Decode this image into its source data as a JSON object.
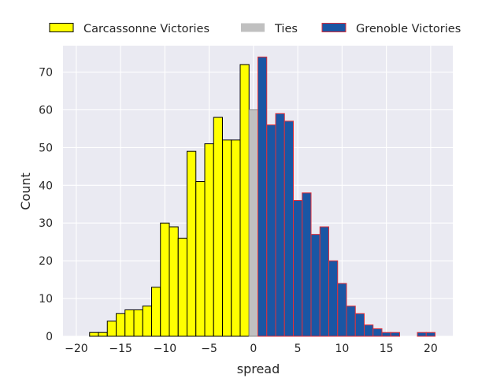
{
  "chart_data": {
    "type": "bar",
    "title": "",
    "xlabel": "spread",
    "ylabel": "Count",
    "xlim": [
      -21.5,
      22.5
    ],
    "ylim": [
      0,
      77
    ],
    "xticks": [
      -20,
      -15,
      -10,
      -5,
      0,
      5,
      10,
      15,
      20
    ],
    "yticks": [
      0,
      10,
      20,
      30,
      40,
      50,
      60,
      70
    ],
    "grid": true,
    "legend_position": "top, above plot",
    "bin_width": 1,
    "series": [
      {
        "name": "Carcassonne Victories",
        "color": "#ffff00",
        "edge_color": "#000000",
        "x": [
          -18,
          -17,
          -16,
          -15,
          -14,
          -13,
          -12,
          -11,
          -10,
          -9,
          -8,
          -7,
          -6,
          -5,
          -4,
          -3,
          -2,
          -1
        ],
        "values": [
          1,
          1,
          4,
          6,
          7,
          7,
          8,
          13,
          30,
          29,
          26,
          49,
          41,
          51,
          58,
          52,
          52,
          72
        ]
      },
      {
        "name": "Ties",
        "color": "#c0c0c0",
        "edge_color": "#888888",
        "x": [
          0
        ],
        "values": [
          60
        ]
      },
      {
        "name": "Grenoble Victories",
        "color": "#1a56a4",
        "edge_color": "#e0303a",
        "x": [
          1,
          2,
          3,
          4,
          5,
          6,
          7,
          8,
          9,
          10,
          11,
          12,
          13,
          14,
          15,
          16,
          17,
          18,
          19,
          20
        ],
        "values": [
          74,
          56,
          59,
          57,
          36,
          38,
          27,
          29,
          20,
          14,
          8,
          6,
          3,
          2,
          1,
          1,
          0,
          0,
          1,
          1
        ]
      }
    ]
  }
}
